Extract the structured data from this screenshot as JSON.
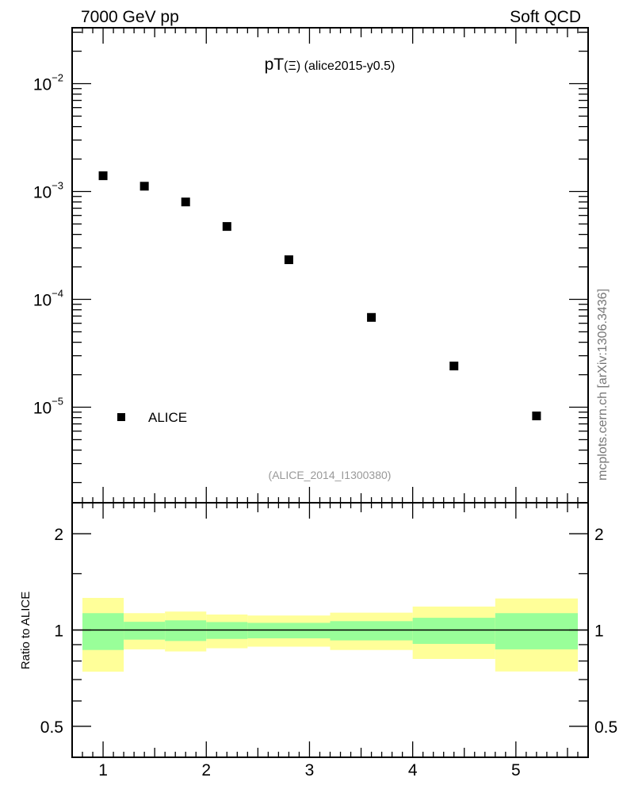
{
  "header": {
    "left": "7000 GeV pp",
    "right": "Soft QCD"
  },
  "side_label": "mcplots.cern.ch [arXiv:1306.3436]",
  "colors": {
    "total_band": "#ffff99",
    "stat_band": "#99ff99",
    "marker": "#000000",
    "ref_line": "#000000",
    "analysis_text": "#999999"
  },
  "chart_data": [
    {
      "type": "scatter",
      "title": "pT(Ξ) (alice2015-y0.5)",
      "title_main": "pT",
      "title_sym": "(Ξ)",
      "title_rest": " (alice2015-y0.5)",
      "analysis": "(ALICE_2014_I1300380)",
      "xlim": [
        0.7,
        5.7
      ],
      "yscale": "log",
      "ylim": [
        1.3e-06,
        0.033
      ],
      "ytick_labels": [
        {
          "base": "10",
          "exp": "−2",
          "value": 0.01
        },
        {
          "base": "10",
          "exp": "−3",
          "value": 0.001
        },
        {
          "base": "10",
          "exp": "−4",
          "value": 0.0001
        },
        {
          "base": "10",
          "exp": "−5",
          "value": 1e-05
        }
      ],
      "legend": {
        "entries": [
          "ALICE"
        ],
        "placement": "bottom-left"
      },
      "series": [
        {
          "name": "ALICE",
          "x": [
            1.0,
            1.4,
            1.8,
            2.2,
            2.8,
            3.6,
            4.4,
            5.2
          ],
          "y": [
            0.0014,
            0.00112,
            0.0008,
            0.000474,
            0.000233,
            6.8e-05,
            2.41e-05,
            8.3e-06
          ]
        }
      ]
    },
    {
      "type": "area",
      "ylabel": "Ratio to ALICE",
      "xlim": [
        0.7,
        5.7
      ],
      "yscale": "log",
      "ylim": [
        0.4,
        2.5
      ],
      "ytick_labels": [
        "0.5",
        "1",
        "2"
      ],
      "yticks": [
        0.5,
        1,
        2
      ],
      "xtick_labels": [
        "1",
        "2",
        "3",
        "4",
        "5"
      ],
      "xticks": [
        1,
        2,
        3,
        4,
        5
      ],
      "bin_edges": [
        0.8,
        1.2,
        1.6,
        2.0,
        2.4,
        3.2,
        4.0,
        4.8,
        5.6
      ],
      "total_band": {
        "lo": [
          0.741,
          0.87,
          0.857,
          0.877,
          0.887,
          0.866,
          0.812,
          0.742
        ],
        "hi": [
          1.26,
          1.129,
          1.142,
          1.118,
          1.11,
          1.133,
          1.184,
          1.255
        ]
      },
      "stat_band": {
        "lo": [
          0.866,
          0.933,
          0.924,
          0.938,
          0.942,
          0.928,
          0.905,
          0.87
        ],
        "hi": [
          1.129,
          1.061,
          1.072,
          1.059,
          1.053,
          1.066,
          1.092,
          1.129
        ]
      },
      "reference": 1
    }
  ]
}
